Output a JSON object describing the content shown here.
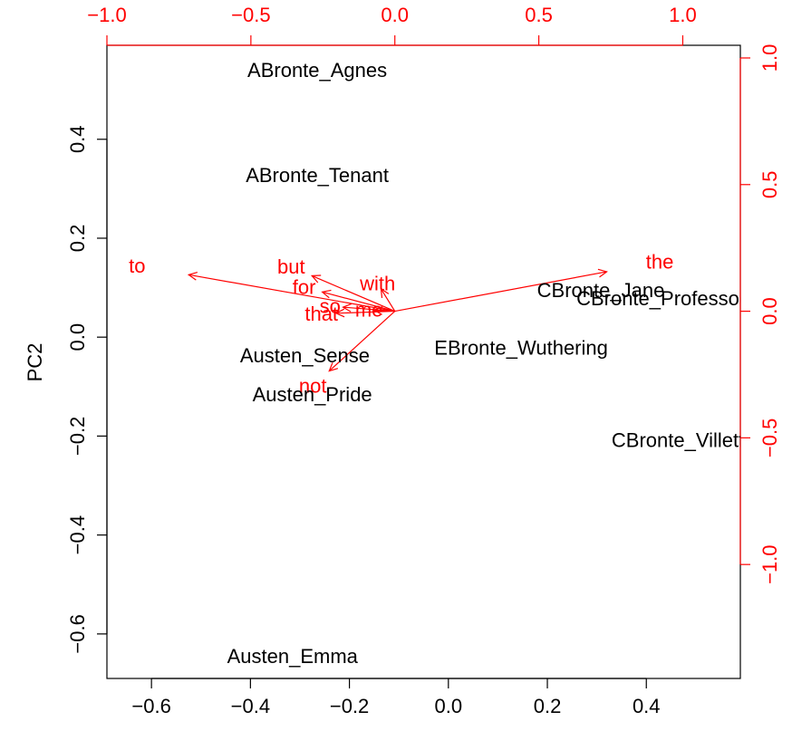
{
  "chart_data": {
    "type": "biplot",
    "title": "",
    "xlabel": "",
    "ylabel": "PC2",
    "xlim": [
      -0.69,
      0.59
    ],
    "ylim": [
      -0.69,
      0.59
    ],
    "x_ticks": [
      -0.6,
      -0.4,
      -0.2,
      0.0,
      0.2,
      0.4
    ],
    "x_tick_labels": [
      "−0.6",
      "−0.4",
      "−0.2",
      "0.0",
      "0.2",
      "0.4"
    ],
    "y_ticks": [
      -0.6,
      -0.4,
      -0.2,
      0.0,
      0.2,
      0.4
    ],
    "y_tick_labels": [
      "−0.6",
      "−0.4",
      "−0.2",
      "0.0",
      "0.2",
      "0.4"
    ],
    "secondary_xlim": [
      -1.0,
      1.2
    ],
    "secondary_x_ticks": [
      -1.0,
      -0.5,
      0.0,
      0.5,
      1.0
    ],
    "secondary_x_tick_labels": [
      "−1.0",
      "−0.5",
      "0.0",
      "0.5",
      "1.0"
    ],
    "secondary_ylim": [
      -1.45,
      1.05
    ],
    "secondary_y_ticks": [
      -1.0,
      -0.5,
      0.0,
      0.5,
      1.0
    ],
    "secondary_y_tick_labels": [
      "−1.0",
      "−0.5",
      "0.0",
      "0.5",
      "1.0"
    ],
    "points": [
      {
        "label": "ABronte_Agnes",
        "x": -0.265,
        "y": 0.54
      },
      {
        "label": "ABronte_Tenant",
        "x": -0.265,
        "y": 0.327
      },
      {
        "label": "CBronte_Jane",
        "x": 0.308,
        "y": 0.095
      },
      {
        "label": "CBronte_Professor",
        "x": 0.43,
        "y": 0.078
      },
      {
        "label": "EBronte_Wuthering",
        "x": 0.147,
        "y": -0.022
      },
      {
        "label": "Austen_Sense",
        "x": -0.29,
        "y": -0.037
      },
      {
        "label": "Austen_Pride",
        "x": -0.275,
        "y": -0.116
      },
      {
        "label": "CBronte_Villette",
        "x": 0.475,
        "y": -0.208
      },
      {
        "label": "Austen_Emma",
        "x": -0.315,
        "y": -0.645
      }
    ],
    "loadings": [
      {
        "label": "to",
        "x": -0.895,
        "y": 0.18
      },
      {
        "label": "but",
        "x": -0.36,
        "y": 0.175
      },
      {
        "label": "for",
        "x": -0.315,
        "y": 0.095
      },
      {
        "label": "with",
        "x": -0.06,
        "y": 0.11
      },
      {
        "label": "so",
        "x": -0.225,
        "y": 0.02
      },
      {
        "label": "that",
        "x": -0.255,
        "y": -0.01
      },
      {
        "label": "me",
        "x": -0.09,
        "y": 0.005
      },
      {
        "label": "not",
        "x": -0.285,
        "y": -0.295
      },
      {
        "label": "the",
        "x": 0.92,
        "y": 0.195
      }
    ],
    "colors": {
      "points": "#000000",
      "loadings": "#ff0000"
    }
  }
}
